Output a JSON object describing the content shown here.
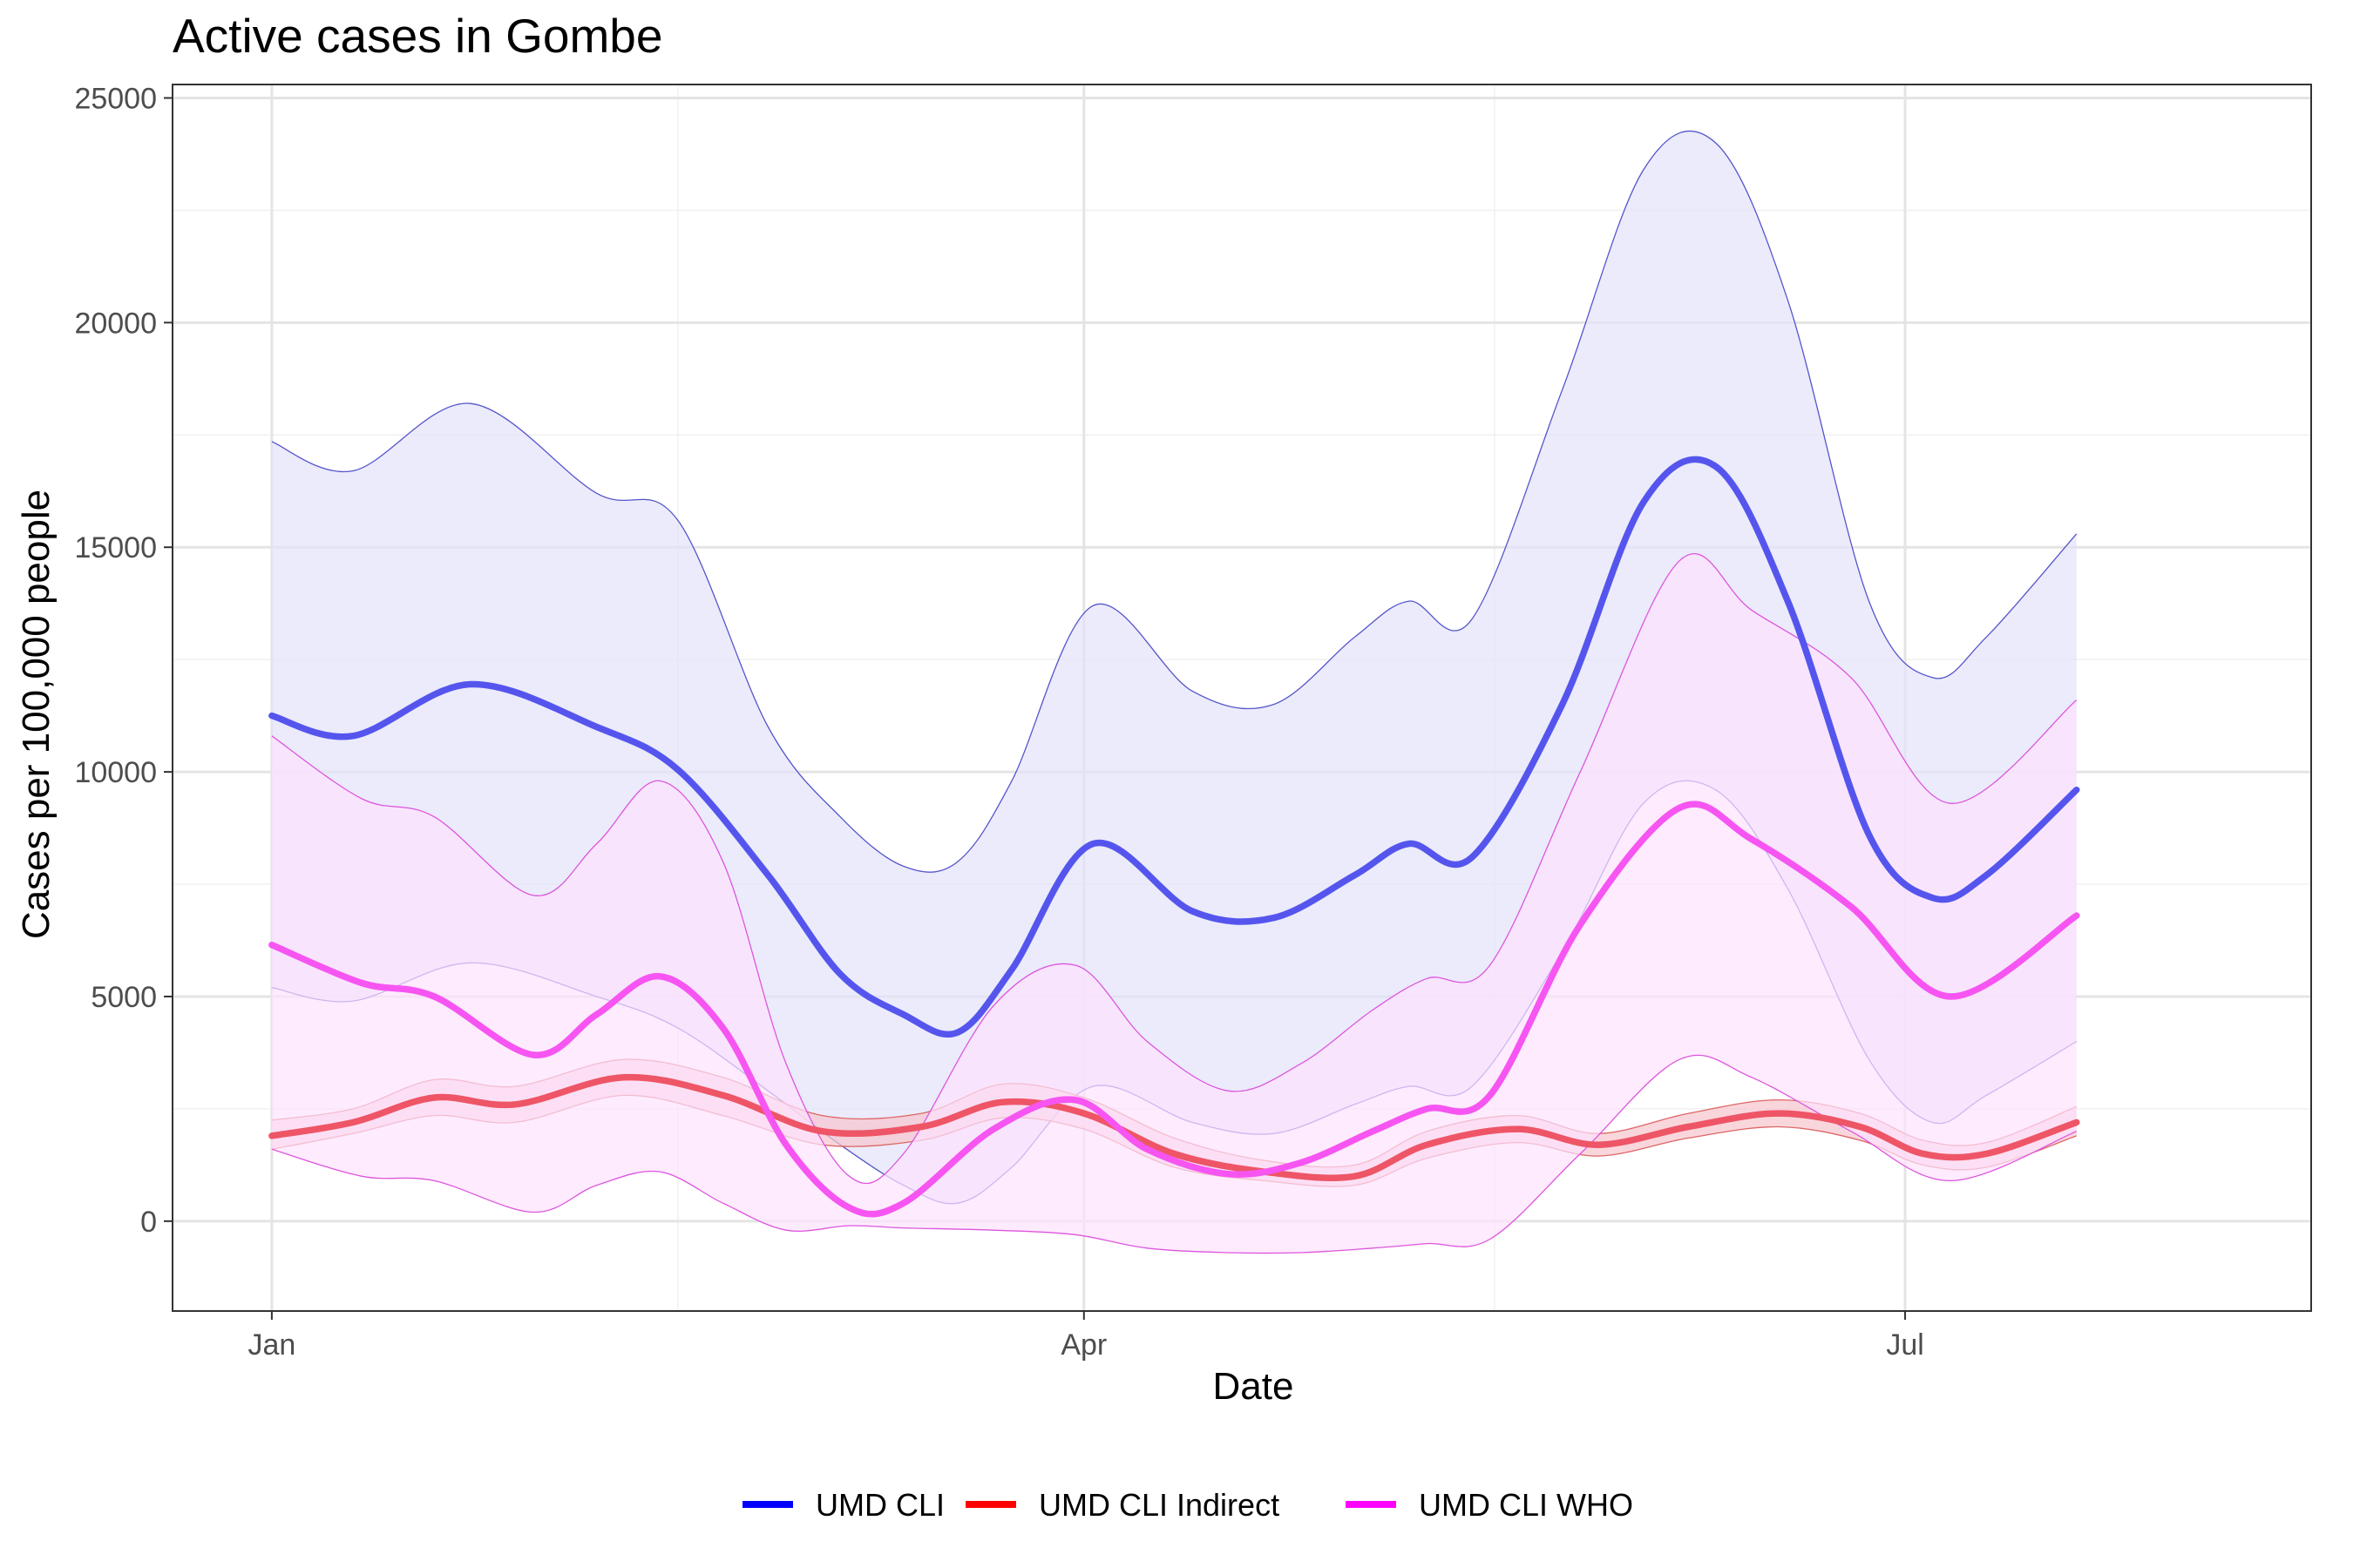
{
  "chart_data": {
    "type": "line",
    "title": "Active cases in Gombe",
    "xlabel": "Date",
    "ylabel": "Cases per 100,000 people",
    "ylim": [
      -2000,
      25300
    ],
    "x_range_days": [
      -11,
      226
    ],
    "y_ticks": [
      0,
      5000,
      10000,
      15000,
      20000,
      25000
    ],
    "y_tick_labels": [
      "0",
      "5000",
      "10000",
      "15000",
      "20000",
      "25000"
    ],
    "x_ticks": [
      0,
      90,
      181
    ],
    "x_tick_labels": [
      "Jan",
      "Apr",
      "Jul"
    ],
    "x_minor_ticks": [
      45,
      135.5
    ],
    "y_minor_ticks": [
      2500,
      7500,
      12500,
      17500,
      22500
    ],
    "grid": true,
    "legend_position": "bottom",
    "series": [
      {
        "name": "UMD CLI",
        "color": "#0000ff",
        "line_color": "#5555ee",
        "band_color": "#e3e3fa",
        "band_edge_color": "#5555cc",
        "x": [
          0,
          9,
          22,
          36,
          45,
          55,
          63,
          70,
          76,
          82,
          91,
          102,
          111,
          120,
          126,
          133,
          143,
          152,
          160,
          168,
          177,
          184,
          190,
          200
        ],
        "y": [
          11250,
          10800,
          11950,
          11000,
          10050,
          7700,
          5500,
          4600,
          4200,
          5600,
          8400,
          6900,
          6750,
          7700,
          8400,
          8100,
          11500,
          16000,
          16800,
          13800,
          8600,
          7200,
          7700,
          9600
        ],
        "lower": [
          5200,
          4900,
          5750,
          5000,
          4300,
          2900,
          1700,
          800,
          400,
          1200,
          3000,
          2200,
          1950,
          2600,
          3000,
          3000,
          6000,
          9300,
          9600,
          7400,
          3600,
          2200,
          2800,
          4000
        ],
        "upper": [
          17350,
          16700,
          18200,
          16200,
          15600,
          11000,
          9000,
          7900,
          8000,
          9800,
          13700,
          11800,
          11500,
          13000,
          13800,
          13400,
          18500,
          23400,
          24000,
          20500,
          13800,
          12100,
          13000,
          15300
        ]
      },
      {
        "name": "UMD CLI Indirect",
        "color": "#ff0000",
        "line_color": "#ee5566",
        "band_color": "#f7c4cd",
        "band_edge_color": "#dd6666",
        "x": [
          0,
          9,
          18,
          27,
          39,
          50,
          61,
          72,
          81,
          90,
          100,
          110,
          120,
          128,
          138,
          147,
          157,
          167,
          176,
          183,
          190,
          200
        ],
        "y": [
          1900,
          2200,
          2750,
          2600,
          3200,
          2800,
          2000,
          2100,
          2650,
          2400,
          1500,
          1100,
          1000,
          1700,
          2050,
          1700,
          2100,
          2400,
          2100,
          1500,
          1500,
          2200
        ],
        "lower": [
          1600,
          1950,
          2350,
          2200,
          2800,
          2350,
          1700,
          1800,
          2300,
          2050,
          1200,
          900,
          800,
          1400,
          1750,
          1450,
          1850,
          2100,
          1800,
          1250,
          1200,
          1900
        ],
        "upper": [
          2250,
          2500,
          3150,
          3000,
          3600,
          3200,
          2350,
          2400,
          3050,
          2750,
          1850,
          1350,
          1250,
          2000,
          2350,
          1950,
          2400,
          2700,
          2400,
          1800,
          1750,
          2550
        ]
      },
      {
        "name": "UMD CLI WHO",
        "color": "#ff00ff",
        "line_color": "#f655f2",
        "band_color": "#fde3fd",
        "band_edge_color": "#dd55dd",
        "x": [
          0,
          10,
          18,
          29,
          36,
          43,
          50,
          57,
          64,
          70,
          80,
          89,
          97,
          106,
          114,
          122,
          128,
          135,
          145,
          156,
          164,
          175,
          186,
          200
        ],
        "y": [
          6150,
          5300,
          5000,
          3700,
          4600,
          5450,
          4300,
          1700,
          300,
          400,
          2050,
          2700,
          1600,
          1050,
          1300,
          2000,
          2500,
          2800,
          6600,
          9200,
          8500,
          7000,
          5000,
          6800
        ],
        "lower": [
          1600,
          1000,
          900,
          200,
          800,
          1100,
          400,
          -200,
          -100,
          -150,
          -200,
          -300,
          -600,
          -700,
          -700,
          -600,
          -500,
          -400,
          1500,
          3600,
          3200,
          2000,
          900,
          2000
        ],
        "upper": [
          10800,
          9400,
          9000,
          7250,
          8400,
          9800,
          8000,
          3500,
          1000,
          1500,
          4800,
          5700,
          4000,
          2900,
          3500,
          4700,
          5400,
          5700,
          10000,
          14700,
          13600,
          12100,
          9300,
          11600
        ]
      }
    ]
  }
}
